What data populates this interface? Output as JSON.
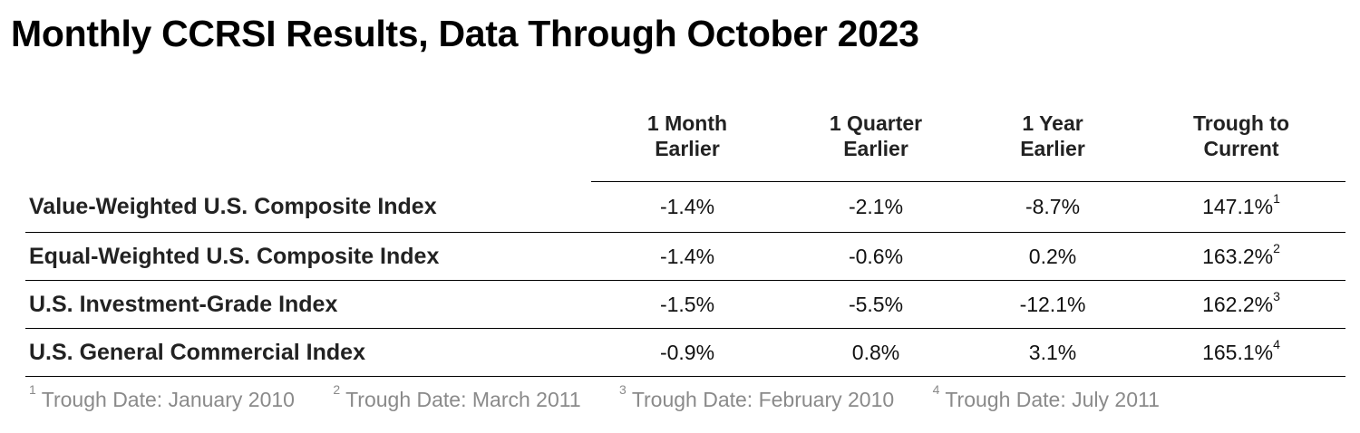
{
  "title": "Monthly CCRSI Results, Data Through October 2023",
  "table": {
    "columns": [
      {
        "line1": "1 Month",
        "line2": "Earlier"
      },
      {
        "line1": "1 Quarter",
        "line2": "Earlier"
      },
      {
        "line1": "1 Year",
        "line2": "Earlier"
      },
      {
        "line1": "Trough to",
        "line2": "Current"
      }
    ],
    "rows": [
      {
        "label": "Value-Weighted U.S. Composite Index",
        "month": "-1.4%",
        "quarter": "-2.1%",
        "year": "-8.7%",
        "trough": "147.1%",
        "note": "1"
      },
      {
        "label": "Equal-Weighted U.S. Composite Index",
        "month": "-1.4%",
        "quarter": "-0.6%",
        "year": "0.2%",
        "trough": "163.2%",
        "note": "2"
      },
      {
        "label": "U.S. Investment-Grade Index",
        "month": "-1.5%",
        "quarter": "-5.5%",
        "year": "-12.1%",
        "trough": "162.2%",
        "note": "3"
      },
      {
        "label": "U.S. General Commercial Index",
        "month": "-0.9%",
        "quarter": "0.8%",
        "year": "3.1%",
        "trough": "165.1%",
        "note": "4"
      }
    ]
  },
  "footnotes": [
    {
      "num": "1",
      "text": "Trough Date: January 2010"
    },
    {
      "num": "2",
      "text": "Trough Date: March 2011"
    },
    {
      "num": "3",
      "text": "Trough Date: February 2010"
    },
    {
      "num": "4",
      "text": "Trough Date: July 2011"
    }
  ]
}
